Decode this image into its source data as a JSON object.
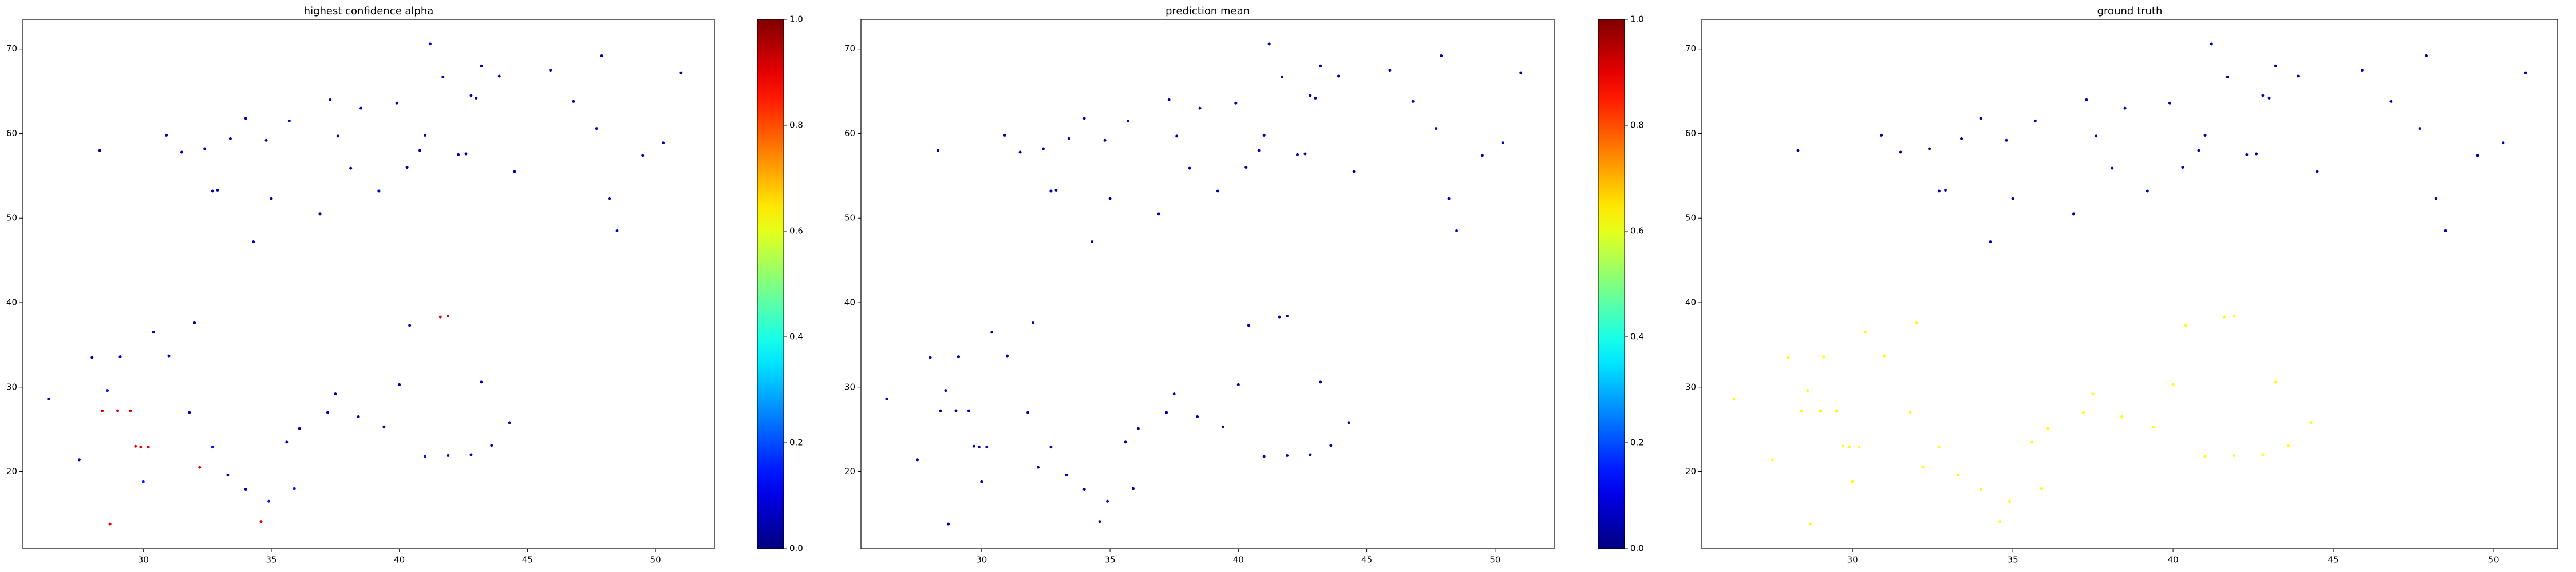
{
  "chart_data": [
    {
      "type": "scatter",
      "title": "highest confidence alpha",
      "cmap": "jet",
      "clim": [
        0,
        1
      ],
      "colorbar": true,
      "cticks": [
        {
          "value": 0,
          "label": "0.0"
        },
        0.2,
        0.4,
        0.6,
        0.8,
        {
          "value": 1,
          "label": "1.0"
        }
      ],
      "xlim": [
        25.3,
        52.3
      ],
      "ylim": [
        10.9,
        73.5
      ],
      "xticks": [
        30,
        35,
        40,
        45,
        50
      ],
      "yticks": [
        20,
        30,
        40,
        50,
        60,
        70
      ],
      "x": [
        28.3,
        30.9,
        31.5,
        32.4,
        32.7,
        32.9,
        33.4,
        34,
        34.8,
        35,
        35.7,
        36.9,
        37.3,
        37.6,
        38.1,
        38.5,
        39.2,
        39.9,
        40.3,
        40.8,
        41,
        41.2,
        41.7,
        42.3,
        42.6,
        42.8,
        43,
        43.2,
        43.9,
        44.5,
        45.9,
        46.8,
        47.7,
        47.9,
        48.2,
        48.5,
        49.5,
        50.3,
        51,
        34.3,
        26.3,
        27.5,
        28,
        28.4,
        28.6,
        29,
        29.1,
        29.5,
        29.7,
        29.9,
        30,
        30.4,
        31,
        31.8,
        32,
        32.2,
        32.7,
        33.3,
        34,
        34.6,
        34.9,
        35.6,
        35.9,
        36.1,
        37.2,
        37.5,
        38.4,
        39.4,
        40,
        40.4,
        41,
        41.6,
        41.9,
        41.9,
        42.8,
        43.2,
        43.6,
        44.3,
        28.7,
        30.2
      ],
      "y": [
        58,
        59.8,
        57.8,
        58.2,
        53.2,
        53.3,
        59.4,
        61.8,
        59.2,
        52.3,
        61.5,
        50.5,
        64,
        59.7,
        55.9,
        63,
        53.2,
        63.6,
        56,
        58,
        59.8,
        70.6,
        66.7,
        57.5,
        57.6,
        64.5,
        64.2,
        68,
        66.8,
        55.5,
        67.5,
        63.8,
        60.6,
        69.2,
        52.3,
        48.5,
        57.4,
        58.9,
        67.2,
        47.2,
        28.6,
        21.4,
        33.5,
        27.2,
        29.6,
        27.2,
        33.6,
        27.2,
        23,
        22.9,
        18.8,
        36.5,
        33.7,
        27,
        37.6,
        20.5,
        22.9,
        19.6,
        17.9,
        14.1,
        16.5,
        23.5,
        18,
        25.1,
        27,
        29.2,
        26.5,
        25.3,
        30.3,
        37.3,
        21.8,
        38.3,
        38.4,
        21.9,
        22,
        30.6,
        23.1,
        25.8,
        13.8,
        22.9
      ],
      "c": [
        0.05,
        0.05,
        0.05,
        0.05,
        0.05,
        0.05,
        0.05,
        0.05,
        0.05,
        0.05,
        0.05,
        0.05,
        0.05,
        0.05,
        0.05,
        0.05,
        0.05,
        0.05,
        0.05,
        0.05,
        0.05,
        0.05,
        0.05,
        0.05,
        0.05,
        0.05,
        0.05,
        0.05,
        0.05,
        0.05,
        0.05,
        0.05,
        0.05,
        0.05,
        0.05,
        0.05,
        0.05,
        0.05,
        0.05,
        0.05,
        0.05,
        0.05,
        0.05,
        0.9,
        0.15,
        0.9,
        0.05,
        0.9,
        0.9,
        0.9,
        0.15,
        0.05,
        0.05,
        0.05,
        0.05,
        0.9,
        0.15,
        0.05,
        0.05,
        0.9,
        0.15,
        0.05,
        0.15,
        0.05,
        0.05,
        0.05,
        0.05,
        0.05,
        0.05,
        0.05,
        0.15,
        0.9,
        0.9,
        0.05,
        0.05,
        0.05,
        0.05,
        0.05,
        0.9,
        0.9
      ]
    },
    {
      "type": "scatter",
      "title": "prediction mean",
      "cmap": "jet",
      "clim": [
        0,
        1
      ],
      "colorbar": true,
      "cticks": [
        {
          "value": 0,
          "label": "0.0"
        },
        0.2,
        0.4,
        0.6,
        0.8,
        {
          "value": 1,
          "label": "1.0"
        }
      ],
      "xlim": [
        25.3,
        52.3
      ],
      "ylim": [
        10.9,
        73.5
      ],
      "xticks": [
        30,
        35,
        40,
        45,
        50
      ],
      "yticks": [
        20,
        30,
        40,
        50,
        60,
        70
      ],
      "x": [
        28.3,
        30.9,
        31.5,
        32.4,
        32.7,
        32.9,
        33.4,
        34,
        34.8,
        35,
        35.7,
        36.9,
        37.3,
        37.6,
        38.1,
        38.5,
        39.2,
        39.9,
        40.3,
        40.8,
        41,
        41.2,
        41.7,
        42.3,
        42.6,
        42.8,
        43,
        43.2,
        43.9,
        44.5,
        45.9,
        46.8,
        47.7,
        47.9,
        48.2,
        48.5,
        49.5,
        50.3,
        51,
        34.3,
        26.3,
        27.5,
        28,
        28.4,
        28.6,
        29,
        29.1,
        29.5,
        29.7,
        29.9,
        30,
        30.4,
        31,
        31.8,
        32,
        32.2,
        32.7,
        33.3,
        34,
        34.6,
        34.9,
        35.6,
        35.9,
        36.1,
        37.2,
        37.5,
        38.4,
        39.4,
        40,
        40.4,
        41,
        41.6,
        41.9,
        41.9,
        42.8,
        43.2,
        43.6,
        44.3,
        28.7,
        30.2
      ],
      "y": [
        58,
        59.8,
        57.8,
        58.2,
        53.2,
        53.3,
        59.4,
        61.8,
        59.2,
        52.3,
        61.5,
        50.5,
        64,
        59.7,
        55.9,
        63,
        53.2,
        63.6,
        56,
        58,
        59.8,
        70.6,
        66.7,
        57.5,
        57.6,
        64.5,
        64.2,
        68,
        66.8,
        55.5,
        67.5,
        63.8,
        60.6,
        69.2,
        52.3,
        48.5,
        57.4,
        58.9,
        67.2,
        47.2,
        28.6,
        21.4,
        33.5,
        27.2,
        29.6,
        27.2,
        33.6,
        27.2,
        23,
        22.9,
        18.8,
        36.5,
        33.7,
        27,
        37.6,
        20.5,
        22.9,
        19.6,
        17.9,
        14.1,
        16.5,
        23.5,
        18,
        25.1,
        27,
        29.2,
        26.5,
        25.3,
        30.3,
        37.3,
        21.8,
        38.3,
        38.4,
        21.9,
        22,
        30.6,
        23.1,
        25.8,
        13.8,
        22.9
      ],
      "c": [
        0.05,
        0.05,
        0.05,
        0.05,
        0.05,
        0.05,
        0.05,
        0.05,
        0.05,
        0.05,
        0.05,
        0.05,
        0.05,
        0.05,
        0.05,
        0.05,
        0.05,
        0.05,
        0.05,
        0.05,
        0.05,
        0.05,
        0.05,
        0.05,
        0.05,
        0.05,
        0.05,
        0.05,
        0.05,
        0.05,
        0.05,
        0.05,
        0.05,
        0.05,
        0.05,
        0.05,
        0.05,
        0.05,
        0.05,
        0.05,
        0.05,
        0.05,
        0.05,
        0.05,
        0.05,
        0.05,
        0.05,
        0.05,
        0.05,
        0.05,
        0.05,
        0.05,
        0.05,
        0.05,
        0.05,
        0.05,
        0.05,
        0.05,
        0.05,
        0.05,
        0.05,
        0.05,
        0.05,
        0.05,
        0.05,
        0.05,
        0.05,
        0.05,
        0.05,
        0.05,
        0.05,
        0.05,
        0.05,
        0.05,
        0.05,
        0.05,
        0.05,
        0.05,
        0.05,
        0.05
      ]
    },
    {
      "type": "scatter",
      "title": "ground truth",
      "cmap": "jet",
      "clim": [
        0,
        1
      ],
      "colorbar": false,
      "xlim": [
        25.3,
        52.0
      ],
      "ylim": [
        10.9,
        73.5
      ],
      "xticks": [
        30,
        35,
        40,
        45,
        50
      ],
      "yticks": [
        20,
        30,
        40,
        50,
        60,
        70
      ],
      "x": [
        28.3,
        30.9,
        31.5,
        32.4,
        32.7,
        32.9,
        33.4,
        34,
        34.8,
        35,
        35.7,
        36.9,
        37.3,
        37.6,
        38.1,
        38.5,
        39.2,
        39.9,
        40.3,
        40.8,
        41,
        41.2,
        41.7,
        42.3,
        42.6,
        42.8,
        43,
        43.2,
        43.9,
        44.5,
        45.9,
        46.8,
        47.7,
        47.9,
        48.2,
        48.5,
        49.5,
        50.3,
        51,
        34.3,
        26.3,
        27.5,
        28,
        28.4,
        28.6,
        29,
        29.1,
        29.5,
        29.7,
        29.9,
        30,
        30.4,
        31,
        31.8,
        32,
        32.2,
        32.7,
        33.3,
        34,
        34.6,
        34.9,
        35.6,
        35.9,
        36.1,
        37.2,
        37.5,
        38.4,
        39.4,
        40,
        40.4,
        41,
        41.6,
        41.9,
        41.9,
        42.8,
        43.2,
        43.6,
        44.3,
        28.7,
        30.2
      ],
      "y": [
        58,
        59.8,
        57.8,
        58.2,
        53.2,
        53.3,
        59.4,
        61.8,
        59.2,
        52.3,
        61.5,
        50.5,
        64,
        59.7,
        55.9,
        63,
        53.2,
        63.6,
        56,
        58,
        59.8,
        70.6,
        66.7,
        57.5,
        57.6,
        64.5,
        64.2,
        68,
        66.8,
        55.5,
        67.5,
        63.8,
        60.6,
        69.2,
        52.3,
        48.5,
        57.4,
        58.9,
        67.2,
        47.2,
        28.6,
        21.4,
        33.5,
        27.2,
        29.6,
        27.2,
        33.6,
        27.2,
        23,
        22.9,
        18.8,
        36.5,
        33.7,
        27,
        37.6,
        20.5,
        22.9,
        19.6,
        17.9,
        14.1,
        16.5,
        23.5,
        18,
        25.1,
        27,
        29.2,
        26.5,
        25.3,
        30.3,
        37.3,
        21.8,
        38.3,
        38.4,
        21.9,
        22,
        30.6,
        23.1,
        25.8,
        13.8,
        22.9
      ],
      "c": [
        0.05,
        0.05,
        0.05,
        0.05,
        0.05,
        0.05,
        0.05,
        0.05,
        0.05,
        0.05,
        0.05,
        0.05,
        0.05,
        0.05,
        0.05,
        0.05,
        0.05,
        0.05,
        0.05,
        0.05,
        0.05,
        0.05,
        0.05,
        0.05,
        0.05,
        0.05,
        0.05,
        0.05,
        0.05,
        0.05,
        0.05,
        0.05,
        0.05,
        0.05,
        0.05,
        0.05,
        0.05,
        0.05,
        0.05,
        0.05,
        0.62,
        0.62,
        0.62,
        0.62,
        0.62,
        0.62,
        0.62,
        0.62,
        0.62,
        0.62,
        0.62,
        0.62,
        0.62,
        0.62,
        0.62,
        0.62,
        0.62,
        0.62,
        0.62,
        0.62,
        0.62,
        0.62,
        0.62,
        0.62,
        0.62,
        0.62,
        0.62,
        0.62,
        0.62,
        0.62,
        0.62,
        0.62,
        0.62,
        0.62,
        0.62,
        0.62,
        0.62,
        0.62,
        0.62,
        0.62
      ]
    }
  ]
}
